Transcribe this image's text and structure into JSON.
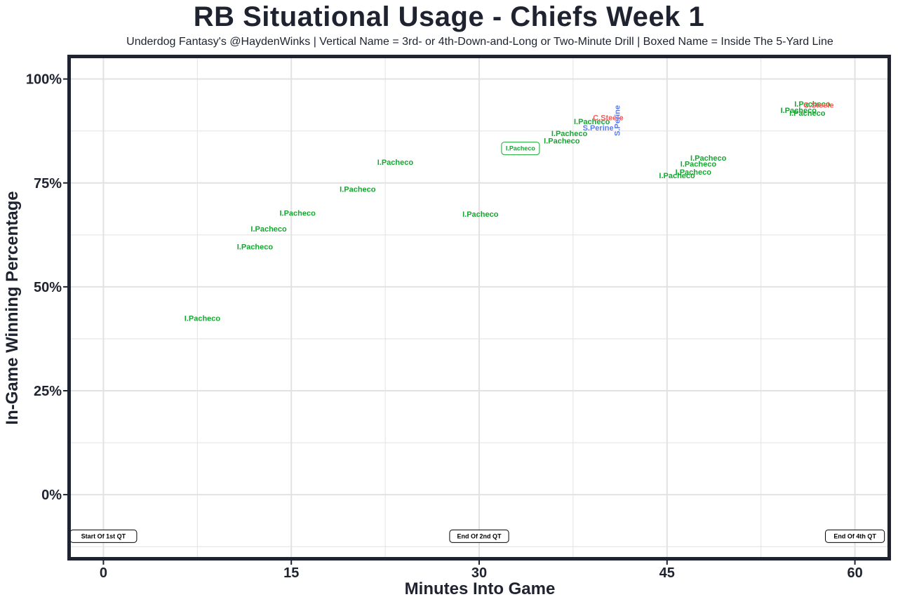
{
  "chart_data": {
    "type": "scatter",
    "title": "RB Situational Usage - Chiefs Week 1",
    "subtitle": "Underdog Fantasy's @HaydenWinks | Vertical Name = 3rd- or 4th-Down-and-Long or Two-Minute Drill | Boxed Name = Inside The 5-Yard Line",
    "xlabel": "Minutes Into Game",
    "ylabel": "In-Game Winning Percentage",
    "xlim": [
      -2.6,
      62.6
    ],
    "ylim": [
      -15,
      105
    ],
    "x_ticks": [
      0,
      15,
      30,
      45,
      60
    ],
    "x_tick_labels": [
      "0",
      "15",
      "30",
      "45",
      "60"
    ],
    "y_ticks": [
      0,
      25,
      50,
      75,
      100
    ],
    "y_tick_labels": [
      "0%",
      "25%",
      "50%",
      "75%",
      "100%"
    ],
    "grid": true,
    "colors": {
      "I.Pacheco": "#18a632",
      "C.Steele": "#f0605a",
      "S.Perine": "#5b7cf0",
      "frame": "#1f2330",
      "grid": "#e2e2e2"
    },
    "points": [
      {
        "player": "I.Pacheco",
        "x": 7.9,
        "y": 42.5
      },
      {
        "player": "I.Pacheco",
        "x": 12.1,
        "y": 59.7
      },
      {
        "player": "I.Pacheco",
        "x": 13.2,
        "y": 64.0
      },
      {
        "player": "I.Pacheco",
        "x": 15.5,
        "y": 67.8
      },
      {
        "player": "I.Pacheco",
        "x": 20.3,
        "y": 73.5
      },
      {
        "player": "I.Pacheco",
        "x": 23.3,
        "y": 80.0
      },
      {
        "player": "I.Pacheco",
        "x": 30.1,
        "y": 67.5
      },
      {
        "player": "I.Pacheco",
        "x": 33.3,
        "y": 83.3,
        "style": "boxed"
      },
      {
        "player": "I.Pacheco",
        "x": 36.6,
        "y": 85.2
      },
      {
        "player": "I.Pacheco",
        "x": 37.2,
        "y": 86.9
      },
      {
        "player": "I.Pacheco",
        "x": 39.0,
        "y": 89.8
      },
      {
        "player": "C.Steele",
        "x": 40.3,
        "y": 90.7
      },
      {
        "player": "S.Perine",
        "x": 39.5,
        "y": 88.3
      },
      {
        "player": "S.Perine",
        "x": 41.0,
        "y": 90.0,
        "style": "vertical"
      },
      {
        "player": "I.Pacheco",
        "x": 45.8,
        "y": 76.8
      },
      {
        "player": "I.Pacheco",
        "x": 47.1,
        "y": 77.7
      },
      {
        "player": "I.Pacheco",
        "x": 47.5,
        "y": 79.6
      },
      {
        "player": "I.Pacheco",
        "x": 48.3,
        "y": 81.0
      },
      {
        "player": "I.Pacheco",
        "x": 55.5,
        "y": 92.5
      },
      {
        "player": "I.Pacheco",
        "x": 56.2,
        "y": 91.8
      },
      {
        "player": "I.Pacheco",
        "x": 56.6,
        "y": 94.0
      },
      {
        "player": "C.Steele",
        "x": 57.1,
        "y": 93.8
      }
    ],
    "annotations": [
      {
        "text": "Start Of 1st QT",
        "x": 0
      },
      {
        "text": "End Of 2nd QT",
        "x": 30
      },
      {
        "text": "End Of 4th QT",
        "x": 60
      }
    ],
    "annotation_y": -10
  }
}
